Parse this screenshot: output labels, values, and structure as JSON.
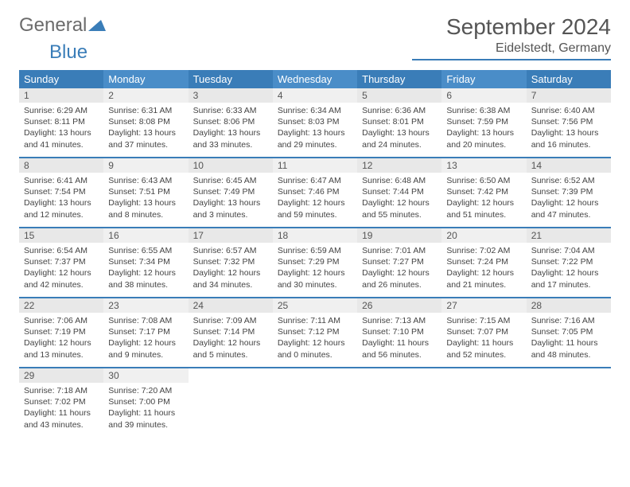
{
  "brand": {
    "part1": "General",
    "part2": "Blue"
  },
  "title": "September 2024",
  "location": "Eidelstedt, Germany",
  "colors": {
    "accent": "#3a7db8",
    "header_alt": "#4a8dc8",
    "daynum_bg": "#e8e8e8",
    "text": "#444"
  },
  "day_headers": [
    "Sunday",
    "Monday",
    "Tuesday",
    "Wednesday",
    "Thursday",
    "Friday",
    "Saturday"
  ],
  "weeks": [
    [
      {
        "n": "1",
        "sr": "6:29 AM",
        "ss": "8:11 PM",
        "dl": "13 hours and 41 minutes."
      },
      {
        "n": "2",
        "sr": "6:31 AM",
        "ss": "8:08 PM",
        "dl": "13 hours and 37 minutes."
      },
      {
        "n": "3",
        "sr": "6:33 AM",
        "ss": "8:06 PM",
        "dl": "13 hours and 33 minutes."
      },
      {
        "n": "4",
        "sr": "6:34 AM",
        "ss": "8:03 PM",
        "dl": "13 hours and 29 minutes."
      },
      {
        "n": "5",
        "sr": "6:36 AM",
        "ss": "8:01 PM",
        "dl": "13 hours and 24 minutes."
      },
      {
        "n": "6",
        "sr": "6:38 AM",
        "ss": "7:59 PM",
        "dl": "13 hours and 20 minutes."
      },
      {
        "n": "7",
        "sr": "6:40 AM",
        "ss": "7:56 PM",
        "dl": "13 hours and 16 minutes."
      }
    ],
    [
      {
        "n": "8",
        "sr": "6:41 AM",
        "ss": "7:54 PM",
        "dl": "13 hours and 12 minutes."
      },
      {
        "n": "9",
        "sr": "6:43 AM",
        "ss": "7:51 PM",
        "dl": "13 hours and 8 minutes."
      },
      {
        "n": "10",
        "sr": "6:45 AM",
        "ss": "7:49 PM",
        "dl": "13 hours and 3 minutes."
      },
      {
        "n": "11",
        "sr": "6:47 AM",
        "ss": "7:46 PM",
        "dl": "12 hours and 59 minutes."
      },
      {
        "n": "12",
        "sr": "6:48 AM",
        "ss": "7:44 PM",
        "dl": "12 hours and 55 minutes."
      },
      {
        "n": "13",
        "sr": "6:50 AM",
        "ss": "7:42 PM",
        "dl": "12 hours and 51 minutes."
      },
      {
        "n": "14",
        "sr": "6:52 AM",
        "ss": "7:39 PM",
        "dl": "12 hours and 47 minutes."
      }
    ],
    [
      {
        "n": "15",
        "sr": "6:54 AM",
        "ss": "7:37 PM",
        "dl": "12 hours and 42 minutes."
      },
      {
        "n": "16",
        "sr": "6:55 AM",
        "ss": "7:34 PM",
        "dl": "12 hours and 38 minutes."
      },
      {
        "n": "17",
        "sr": "6:57 AM",
        "ss": "7:32 PM",
        "dl": "12 hours and 34 minutes."
      },
      {
        "n": "18",
        "sr": "6:59 AM",
        "ss": "7:29 PM",
        "dl": "12 hours and 30 minutes."
      },
      {
        "n": "19",
        "sr": "7:01 AM",
        "ss": "7:27 PM",
        "dl": "12 hours and 26 minutes."
      },
      {
        "n": "20",
        "sr": "7:02 AM",
        "ss": "7:24 PM",
        "dl": "12 hours and 21 minutes."
      },
      {
        "n": "21",
        "sr": "7:04 AM",
        "ss": "7:22 PM",
        "dl": "12 hours and 17 minutes."
      }
    ],
    [
      {
        "n": "22",
        "sr": "7:06 AM",
        "ss": "7:19 PM",
        "dl": "12 hours and 13 minutes."
      },
      {
        "n": "23",
        "sr": "7:08 AM",
        "ss": "7:17 PM",
        "dl": "12 hours and 9 minutes."
      },
      {
        "n": "24",
        "sr": "7:09 AM",
        "ss": "7:14 PM",
        "dl": "12 hours and 5 minutes."
      },
      {
        "n": "25",
        "sr": "7:11 AM",
        "ss": "7:12 PM",
        "dl": "12 hours and 0 minutes."
      },
      {
        "n": "26",
        "sr": "7:13 AM",
        "ss": "7:10 PM",
        "dl": "11 hours and 56 minutes."
      },
      {
        "n": "27",
        "sr": "7:15 AM",
        "ss": "7:07 PM",
        "dl": "11 hours and 52 minutes."
      },
      {
        "n": "28",
        "sr": "7:16 AM",
        "ss": "7:05 PM",
        "dl": "11 hours and 48 minutes."
      }
    ],
    [
      {
        "n": "29",
        "sr": "7:18 AM",
        "ss": "7:02 PM",
        "dl": "11 hours and 43 minutes."
      },
      {
        "n": "30",
        "sr": "7:20 AM",
        "ss": "7:00 PM",
        "dl": "11 hours and 39 minutes."
      },
      null,
      null,
      null,
      null,
      null
    ]
  ],
  "labels": {
    "sunrise": "Sunrise:",
    "sunset": "Sunset:",
    "daylight": "Daylight:"
  }
}
